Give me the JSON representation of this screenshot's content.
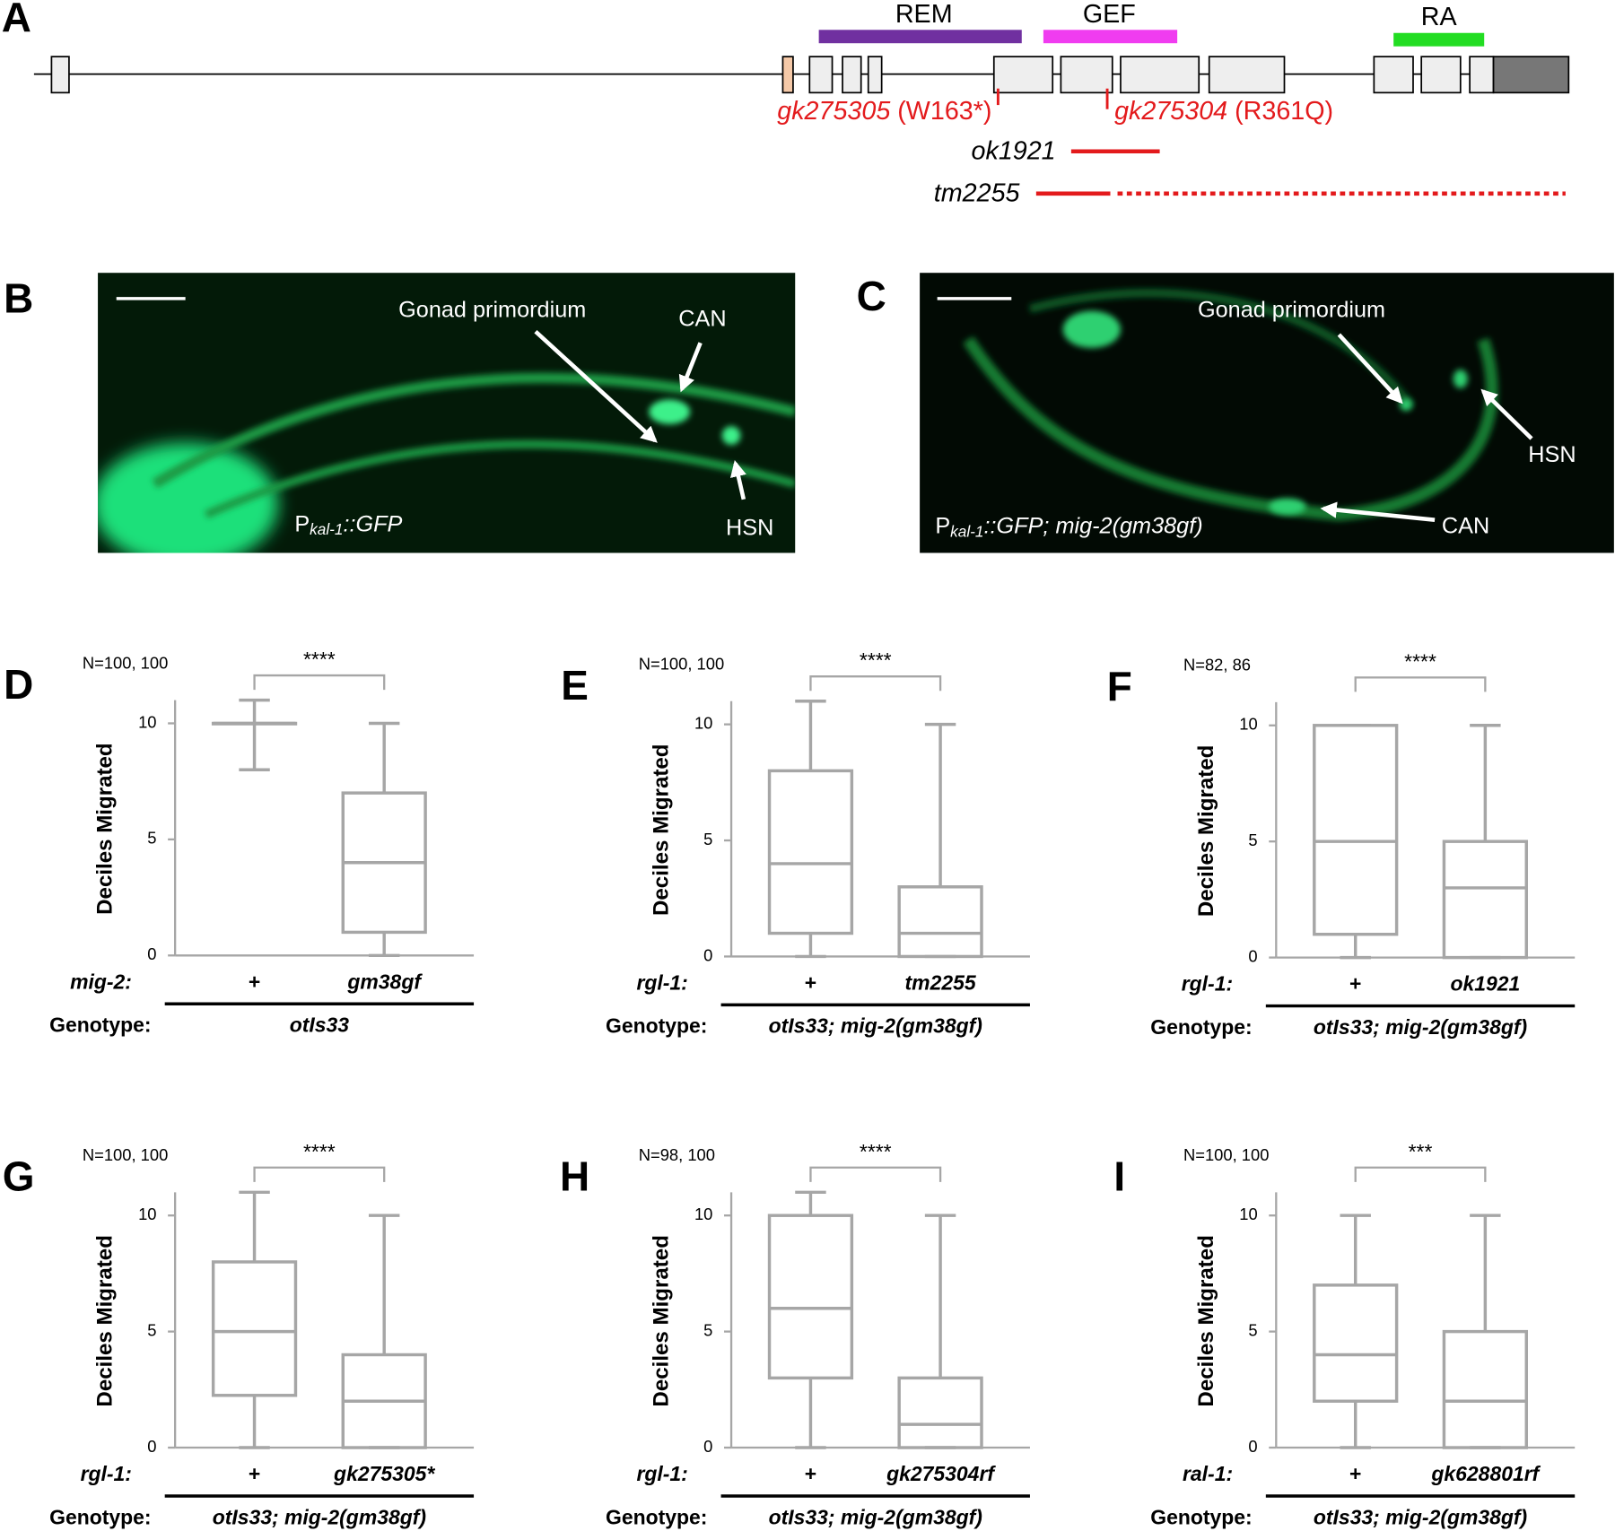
{
  "panel_a": {
    "label": "A",
    "domains": [
      "REM",
      "GEF",
      "RA"
    ],
    "alleles": [
      {
        "name": "gk275305",
        "change": "(W163*)"
      },
      {
        "name": "gk275304",
        "change": "(R361Q)"
      },
      {
        "name": "ok1921"
      },
      {
        "name": "tm2255"
      }
    ]
  },
  "panel_b": {
    "label": "B",
    "annotations": [
      "Gonad primordium",
      "CAN",
      "HSN"
    ],
    "promoter": "P",
    "promoter_sub": "kal-1",
    "reporter": "::GFP"
  },
  "panel_c": {
    "label": "C",
    "annotations": [
      "Gonad primordium",
      "HSN",
      "CAN"
    ],
    "promoter": "P",
    "promoter_sub": "kal-1",
    "reporter": "::GFP; mig-2(gm38gf)"
  },
  "chart_data": [
    {
      "type": "box",
      "label": "D",
      "n_label": "N=100, 100",
      "significance": "****",
      "ylabel": "Deciles Migrated",
      "gene_label": "mig-2:",
      "categories": [
        "+",
        "gm38gf"
      ],
      "genotype_label": "Genotype:",
      "genotype": "otIs33",
      "min": [
        8,
        0
      ],
      "q1": [
        10,
        1
      ],
      "median": [
        10,
        4
      ],
      "q3": [
        10,
        7
      ],
      "max": [
        11,
        10
      ],
      "ylim": [
        0,
        11
      ],
      "yticks": [
        0,
        5,
        10
      ],
      "color": "#a6a6a6"
    },
    {
      "type": "box",
      "label": "E",
      "n_label": "N=100, 100",
      "significance": "****",
      "ylabel": "Deciles Migrated",
      "gene_label": "rgl-1:",
      "categories": [
        "+",
        "tm2255"
      ],
      "genotype_label": "Genotype:",
      "genotype": "otIs33; mig-2(gm38gf)",
      "min": [
        0,
        0
      ],
      "q1": [
        1,
        0
      ],
      "median": [
        4,
        1
      ],
      "q3": [
        8,
        3
      ],
      "max": [
        11,
        10
      ],
      "ylim": [
        0,
        11
      ],
      "yticks": [
        0,
        5,
        10
      ],
      "color": "#a6a6a6"
    },
    {
      "type": "box",
      "label": "F",
      "n_label": "N=82, 86",
      "significance": "****",
      "ylabel": "Deciles Migrated",
      "gene_label": "rgl-1:",
      "categories": [
        "+",
        "ok1921"
      ],
      "genotype_label": "Genotype:",
      "genotype": "otIs33; mig-2(gm38gf)",
      "min": [
        0,
        0
      ],
      "q1": [
        1,
        0
      ],
      "median": [
        5,
        3
      ],
      "q3": [
        10,
        5
      ],
      "max": [
        10,
        10
      ],
      "ylim": [
        0,
        11
      ],
      "yticks": [
        0,
        5,
        10
      ],
      "color": "#a6a6a6"
    },
    {
      "type": "box",
      "label": "G",
      "n_label": "N=100, 100",
      "significance": "****",
      "ylabel": "Deciles Migrated",
      "gene_label": "rgl-1:",
      "categories": [
        "+",
        "gk275305*"
      ],
      "genotype_label": "Genotype:",
      "genotype": "otIs33; mig-2(gm38gf)",
      "min": [
        0,
        0
      ],
      "q1": [
        2.25,
        0
      ],
      "median": [
        5,
        2
      ],
      "q3": [
        8,
        4
      ],
      "max": [
        11,
        10
      ],
      "ylim": [
        0,
        11
      ],
      "yticks": [
        0,
        5,
        10
      ],
      "color": "#a6a6a6"
    },
    {
      "type": "box",
      "label": "H",
      "n_label": "N=98, 100",
      "significance": "****",
      "ylabel": "Deciles Migrated",
      "gene_label": "rgl-1:",
      "categories": [
        "+",
        "gk275304rf"
      ],
      "genotype_label": "Genotype:",
      "genotype": "otIs33; mig-2(gm38gf)",
      "min": [
        0,
        0
      ],
      "q1": [
        3,
        0
      ],
      "median": [
        6,
        1
      ],
      "q3": [
        10,
        3
      ],
      "max": [
        11,
        10
      ],
      "ylim": [
        0,
        11
      ],
      "yticks": [
        0,
        5,
        10
      ],
      "color": "#a6a6a6"
    },
    {
      "type": "box",
      "label": "I",
      "n_label": "N=100, 100",
      "significance": "***",
      "ylabel": "Deciles Migrated",
      "gene_label": "ral-1:",
      "categories": [
        "+",
        "gk628801rf"
      ],
      "genotype_label": "Genotype:",
      "genotype": "otIs33; mig-2(gm38gf)",
      "min": [
        0,
        0
      ],
      "q1": [
        2,
        0
      ],
      "median": [
        4,
        2
      ],
      "q3": [
        7,
        5
      ],
      "max": [
        10,
        10
      ],
      "ylim": [
        0,
        11
      ],
      "yticks": [
        0,
        5,
        10
      ],
      "color": "#a6a6a6"
    }
  ]
}
